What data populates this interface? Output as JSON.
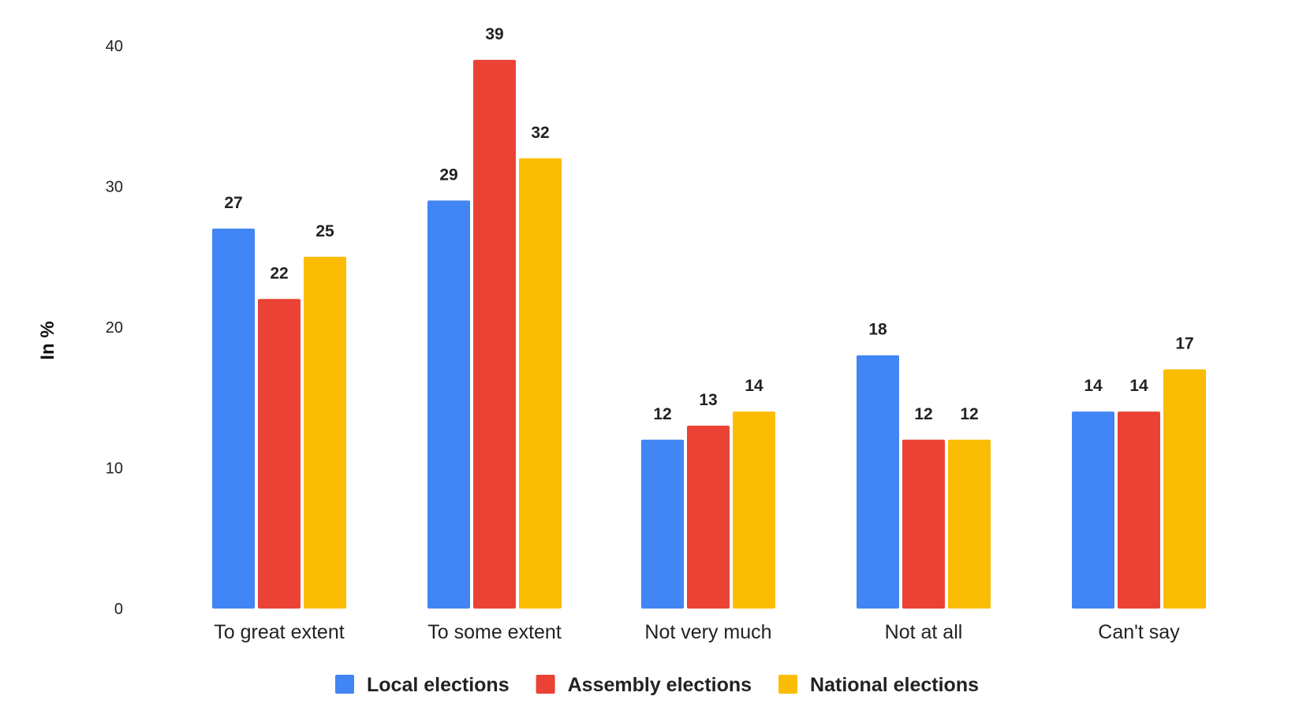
{
  "chart_data": {
    "type": "bar",
    "title": "",
    "xlabel": "",
    "ylabel": "In %",
    "ylim": [
      0,
      40
    ],
    "yticks": [
      0,
      10,
      20,
      30,
      40
    ],
    "grid": false,
    "legend_position": "bottom",
    "categories": [
      "To great extent",
      "To some extent",
      "Not very much",
      "Not at all",
      "Can't say"
    ],
    "series": [
      {
        "name": "Local elections",
        "color": "#4285F4",
        "values": [
          27,
          29,
          12,
          18,
          14
        ]
      },
      {
        "name": "Assembly elections",
        "color": "#EA4335",
        "values": [
          22,
          39,
          13,
          12,
          14
        ]
      },
      {
        "name": "National elections",
        "color": "#FBBC04",
        "values": [
          25,
          32,
          14,
          12,
          17
        ]
      }
    ]
  }
}
